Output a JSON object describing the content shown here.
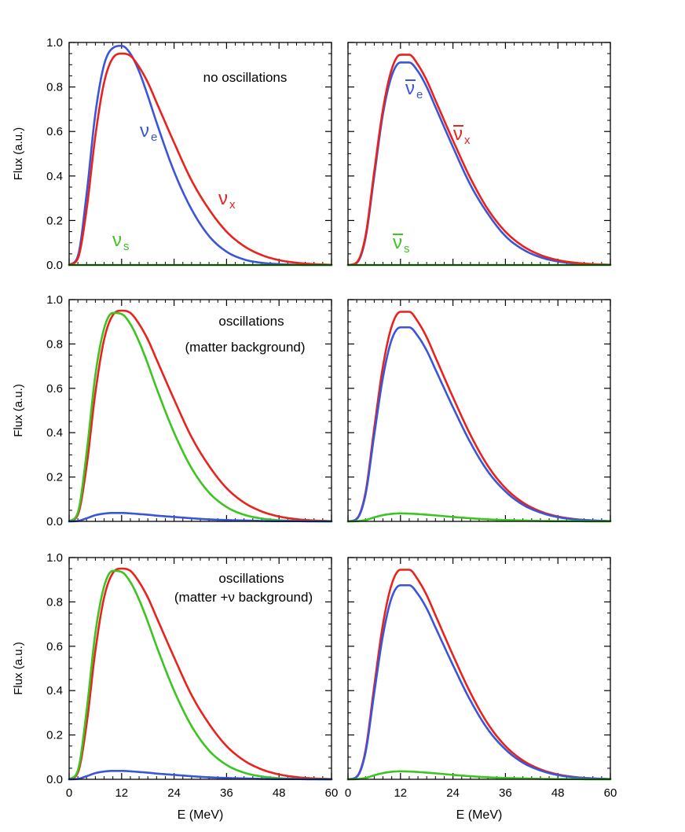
{
  "figure": {
    "ylabel": "Flux (a.u.)",
    "xlabel": "E (MeV)"
  },
  "colors": {
    "nu_e": "#3a55d8",
    "nu_x": "#e8231e",
    "nu_s": "#3cc421",
    "axis": "#000000"
  },
  "chart_data": [
    {
      "type": "line",
      "panel": "top-left",
      "annotation": [
        "no oscillations"
      ],
      "xlim": [
        0,
        60
      ],
      "ylim": [
        0,
        1.0
      ],
      "xticks": [
        0,
        12,
        24,
        36,
        48,
        60
      ],
      "yticks": [
        0.0,
        0.2,
        0.4,
        0.6,
        0.8,
        1.0
      ],
      "ytick_labels": [
        "0.0",
        "0.2",
        "0.4",
        "0.6",
        "0.8",
        "1.0"
      ],
      "xtick_labels": [],
      "x": [
        0,
        2,
        4,
        6,
        8,
        10,
        12,
        14,
        16,
        18,
        20,
        24,
        28,
        32,
        36,
        40,
        44,
        48,
        52,
        56,
        60
      ],
      "series": [
        {
          "name": "νe",
          "color_key": "nu_e",
          "label": {
            "base": "ν",
            "sub": "e",
            "bar": false
          },
          "values": [
            0.0,
            0.04,
            0.32,
            0.68,
            0.9,
            0.975,
            0.985,
            0.95,
            0.87,
            0.76,
            0.64,
            0.42,
            0.25,
            0.13,
            0.06,
            0.025,
            0.01,
            0.004,
            0.001,
            0.0,
            0.0
          ]
        },
        {
          "name": "νx",
          "color_key": "nu_x",
          "label": {
            "base": "ν",
            "sub": "x",
            "bar": false
          },
          "values": [
            0.0,
            0.03,
            0.25,
            0.58,
            0.82,
            0.93,
            0.95,
            0.94,
            0.89,
            0.82,
            0.73,
            0.55,
            0.38,
            0.25,
            0.15,
            0.085,
            0.045,
            0.022,
            0.01,
            0.004,
            0.001
          ]
        },
        {
          "name": "νs",
          "color_key": "nu_s",
          "label": {
            "base": "ν",
            "sub": "s",
            "bar": false
          },
          "values": [
            0,
            0,
            0,
            0,
            0,
            0,
            0,
            0,
            0,
            0,
            0,
            0,
            0,
            0,
            0,
            0,
            0,
            0,
            0,
            0,
            0
          ]
        }
      ]
    },
    {
      "type": "line",
      "panel": "top-right",
      "annotation": [],
      "xlim": [
        0,
        60
      ],
      "ylim": [
        0,
        1.0
      ],
      "xticks": [
        0,
        12,
        24,
        36,
        48,
        60
      ],
      "yticks": [
        0.0,
        0.2,
        0.4,
        0.6,
        0.8,
        1.0
      ],
      "ytick_labels": [],
      "xtick_labels": [],
      "x": [
        0,
        2,
        4,
        6,
        8,
        10,
        12,
        14,
        16,
        18,
        20,
        24,
        28,
        32,
        36,
        40,
        44,
        48,
        52,
        56,
        60
      ],
      "series": [
        {
          "name": "ν̄e",
          "color_key": "nu_e",
          "label": {
            "base": "ν",
            "sub": "e",
            "bar": true
          },
          "values": [
            0.0,
            0.01,
            0.12,
            0.4,
            0.68,
            0.85,
            0.91,
            0.91,
            0.87,
            0.8,
            0.71,
            0.53,
            0.36,
            0.23,
            0.13,
            0.07,
            0.035,
            0.016,
            0.007,
            0.003,
            0.001
          ]
        },
        {
          "name": "ν̄x",
          "color_key": "nu_x",
          "label": {
            "base": "ν",
            "sub": "x",
            "bar": true
          },
          "values": [
            0.0,
            0.012,
            0.13,
            0.42,
            0.7,
            0.88,
            0.945,
            0.945,
            0.9,
            0.83,
            0.74,
            0.56,
            0.39,
            0.25,
            0.15,
            0.085,
            0.045,
            0.022,
            0.01,
            0.004,
            0.001
          ]
        },
        {
          "name": "ν̄s",
          "color_key": "nu_s",
          "label": {
            "base": "ν",
            "sub": "s",
            "bar": true
          },
          "values": [
            0,
            0,
            0,
            0,
            0,
            0,
            0,
            0,
            0,
            0,
            0,
            0,
            0,
            0,
            0,
            0,
            0,
            0,
            0,
            0,
            0
          ]
        }
      ]
    },
    {
      "type": "line",
      "panel": "middle-left",
      "annotation": [
        "oscillations",
        "(matter background)"
      ],
      "xlim": [
        0,
        60
      ],
      "ylim": [
        0,
        1.0
      ],
      "xticks": [
        0,
        12,
        24,
        36,
        48,
        60
      ],
      "yticks": [
        0.0,
        0.2,
        0.4,
        0.6,
        0.8,
        1.0
      ],
      "ytick_labels": [
        "0.0",
        "0.2",
        "0.4",
        "0.6",
        "0.8",
        "1.0"
      ],
      "xtick_labels": [],
      "x": [
        0,
        2,
        4,
        6,
        8,
        10,
        12,
        14,
        16,
        18,
        20,
        24,
        28,
        32,
        36,
        40,
        44,
        48,
        52,
        56,
        60
      ],
      "series": [
        {
          "name": "νx",
          "color_key": "nu_x",
          "label": null,
          "values": [
            0.0,
            0.03,
            0.25,
            0.58,
            0.82,
            0.93,
            0.95,
            0.94,
            0.89,
            0.82,
            0.73,
            0.55,
            0.38,
            0.25,
            0.15,
            0.085,
            0.045,
            0.022,
            0.01,
            0.004,
            0.001
          ]
        },
        {
          "name": "νs",
          "color_key": "nu_s",
          "label": null,
          "values": [
            0.0,
            0.04,
            0.31,
            0.66,
            0.87,
            0.94,
            0.935,
            0.89,
            0.81,
            0.71,
            0.6,
            0.4,
            0.24,
            0.13,
            0.065,
            0.03,
            0.013,
            0.005,
            0.002,
            0.001,
            0.0
          ]
        },
        {
          "name": "νe",
          "color_key": "nu_e",
          "label": null,
          "values": [
            0.0,
            0.002,
            0.014,
            0.028,
            0.035,
            0.038,
            0.038,
            0.036,
            0.033,
            0.03,
            0.026,
            0.02,
            0.014,
            0.009,
            0.006,
            0.004,
            0.002,
            0.001,
            0.001,
            0.0,
            0.0
          ]
        }
      ]
    },
    {
      "type": "line",
      "panel": "middle-right",
      "annotation": [],
      "xlim": [
        0,
        60
      ],
      "ylim": [
        0,
        1.0
      ],
      "xticks": [
        0,
        12,
        24,
        36,
        48,
        60
      ],
      "yticks": [
        0.0,
        0.2,
        0.4,
        0.6,
        0.8,
        1.0
      ],
      "ytick_labels": [],
      "xtick_labels": [],
      "x": [
        0,
        2,
        4,
        6,
        8,
        10,
        12,
        14,
        16,
        18,
        20,
        24,
        28,
        32,
        36,
        40,
        44,
        48,
        52,
        56,
        60
      ],
      "series": [
        {
          "name": "ν̄x",
          "color_key": "nu_x",
          "label": null,
          "values": [
            0.0,
            0.012,
            0.13,
            0.42,
            0.7,
            0.88,
            0.945,
            0.945,
            0.9,
            0.83,
            0.74,
            0.56,
            0.39,
            0.25,
            0.15,
            0.085,
            0.045,
            0.022,
            0.01,
            0.004,
            0.001
          ]
        },
        {
          "name": "ν̄e",
          "color_key": "nu_e",
          "label": null,
          "values": [
            0.0,
            0.011,
            0.12,
            0.39,
            0.65,
            0.82,
            0.875,
            0.875,
            0.835,
            0.77,
            0.685,
            0.515,
            0.355,
            0.225,
            0.135,
            0.075,
            0.04,
            0.019,
            0.009,
            0.004,
            0.001
          ]
        },
        {
          "name": "ν̄s",
          "color_key": "nu_s",
          "label": null,
          "values": [
            0.0,
            0.001,
            0.006,
            0.018,
            0.028,
            0.034,
            0.036,
            0.035,
            0.033,
            0.03,
            0.027,
            0.02,
            0.014,
            0.009,
            0.006,
            0.004,
            0.002,
            0.001,
            0.001,
            0.0,
            0.0
          ]
        }
      ]
    },
    {
      "type": "line",
      "panel": "bottom-left",
      "annotation": [
        "oscillations",
        "(matter +ν background)"
      ],
      "xlim": [
        0,
        60
      ],
      "ylim": [
        0,
        1.0
      ],
      "xticks": [
        0,
        12,
        24,
        36,
        48,
        60
      ],
      "yticks": [
        0.0,
        0.2,
        0.4,
        0.6,
        0.8,
        1.0
      ],
      "ytick_labels": [
        "0.0",
        "0.2",
        "0.4",
        "0.6",
        "0.8",
        "1.0"
      ],
      "xtick_labels": [
        "0",
        "12",
        "24",
        "36",
        "48",
        "60"
      ],
      "xlabel_shown": true,
      "x": [
        0,
        2,
        4,
        6,
        8,
        10,
        12,
        14,
        16,
        18,
        20,
        24,
        28,
        32,
        36,
        40,
        44,
        48,
        52,
        56,
        60
      ],
      "series": [
        {
          "name": "νx",
          "color_key": "nu_x",
          "label": null,
          "values": [
            0.0,
            0.03,
            0.25,
            0.58,
            0.82,
            0.93,
            0.95,
            0.94,
            0.89,
            0.82,
            0.73,
            0.55,
            0.38,
            0.25,
            0.15,
            0.085,
            0.045,
            0.022,
            0.01,
            0.004,
            0.001
          ]
        },
        {
          "name": "νs",
          "color_key": "nu_s",
          "label": null,
          "values": [
            0.0,
            0.04,
            0.31,
            0.66,
            0.87,
            0.94,
            0.935,
            0.89,
            0.81,
            0.71,
            0.6,
            0.4,
            0.24,
            0.13,
            0.065,
            0.03,
            0.013,
            0.005,
            0.002,
            0.001,
            0.0
          ]
        },
        {
          "name": "νe",
          "color_key": "nu_e",
          "label": null,
          "values": [
            0.0,
            0.002,
            0.014,
            0.028,
            0.035,
            0.038,
            0.038,
            0.036,
            0.033,
            0.03,
            0.026,
            0.02,
            0.014,
            0.009,
            0.006,
            0.004,
            0.002,
            0.001,
            0.001,
            0.0,
            0.0
          ]
        }
      ]
    },
    {
      "type": "line",
      "panel": "bottom-right",
      "annotation": [],
      "xlim": [
        0,
        60
      ],
      "ylim": [
        0,
        1.0
      ],
      "xticks": [
        0,
        12,
        24,
        36,
        48,
        60
      ],
      "yticks": [
        0.0,
        0.2,
        0.4,
        0.6,
        0.8,
        1.0
      ],
      "ytick_labels": [],
      "xtick_labels": [
        "0",
        "12",
        "24",
        "36",
        "48",
        "60"
      ],
      "xlabel_shown": true,
      "x": [
        0,
        2,
        4,
        6,
        8,
        10,
        12,
        14,
        16,
        18,
        20,
        24,
        28,
        32,
        36,
        40,
        44,
        48,
        52,
        56,
        60
      ],
      "series": [
        {
          "name": "ν̄x",
          "color_key": "nu_x",
          "label": null,
          "values": [
            0.0,
            0.012,
            0.13,
            0.42,
            0.7,
            0.88,
            0.945,
            0.945,
            0.9,
            0.83,
            0.74,
            0.56,
            0.39,
            0.25,
            0.15,
            0.085,
            0.045,
            0.022,
            0.01,
            0.004,
            0.001
          ]
        },
        {
          "name": "ν̄e",
          "color_key": "nu_e",
          "label": null,
          "values": [
            0.0,
            0.011,
            0.12,
            0.39,
            0.65,
            0.82,
            0.875,
            0.875,
            0.835,
            0.77,
            0.685,
            0.515,
            0.355,
            0.225,
            0.135,
            0.075,
            0.04,
            0.019,
            0.009,
            0.004,
            0.001
          ]
        },
        {
          "name": "ν̄s",
          "color_key": "nu_s",
          "label": null,
          "values": [
            0.0,
            0.001,
            0.006,
            0.018,
            0.028,
            0.034,
            0.036,
            0.035,
            0.033,
            0.03,
            0.027,
            0.02,
            0.014,
            0.009,
            0.006,
            0.004,
            0.002,
            0.001,
            0.001,
            0.0,
            0.0
          ]
        }
      ]
    }
  ]
}
